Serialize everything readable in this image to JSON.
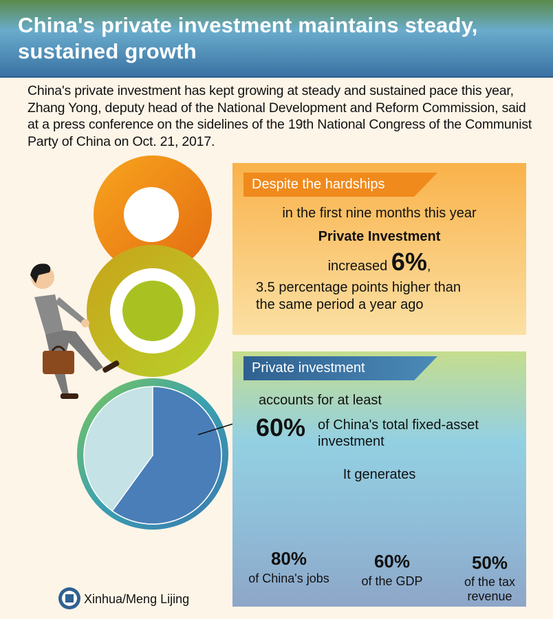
{
  "title": "China's private investment maintains steady, sustained growth",
  "intro": "China's private investment has kept growing at steady and sustained pace this year, Zhang Yong, deputy head of the National Development and Reform Commission, said at a press conference on the sidelines of the 19th National Congress of the Communist Party of China on Oct. 21, 2017.",
  "section1": {
    "banner": "Despite the hardships",
    "line1": "in the first nine months this year",
    "line2": "Private Investment",
    "line3_pre": "increased",
    "line3_value": "6%",
    "line3_post": ",",
    "line4": "3.5 percentage points higher than",
    "line5": "the same period a year ago"
  },
  "section2": {
    "banner": "Private investment",
    "accounts": "accounts for at least",
    "share_value": "60%",
    "share_text1": "of China's total fixed-asset",
    "share_text2": "investment",
    "share_percent": 60,
    "generates": "It generates",
    "items": [
      {
        "value": "80%",
        "percent": 80,
        "label": "of China's jobs"
      },
      {
        "value": "60%",
        "percent": 60,
        "label": "of the GDP"
      },
      {
        "value": "50%",
        "percent": 50,
        "label": "of the tax revenue"
      }
    ]
  },
  "credit": "Xinhua/Meng Lijing",
  "colors": {
    "orange": "#f08a1c",
    "blue": "#2f6190",
    "pie_main": "#4a7eb8",
    "pie_rest": "#c5e2e6"
  }
}
